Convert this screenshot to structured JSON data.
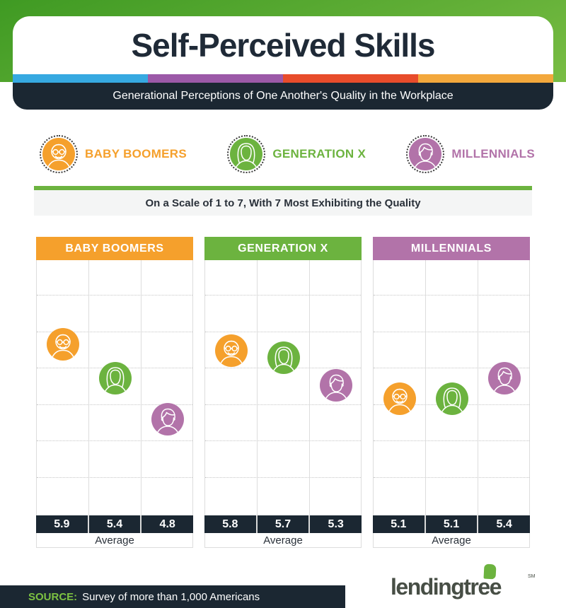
{
  "header": {
    "title": "Self-Perceived Skills",
    "subtitle": "Generational Perceptions of One Another's Quality in the Workplace",
    "band_green_top": "#3F9A23",
    "band_green_bottom": "#79BD44",
    "stripe_colors": [
      "#36A9E1",
      "#9C59A8",
      "#E84C2B",
      "#F3A83C"
    ],
    "bar_color": "#1B2732"
  },
  "legend": {
    "items": [
      {
        "label": "BABY BOOMERS",
        "color": "#F5A02C",
        "icon": "boomer-avatar-icon"
      },
      {
        "label": "GENERATION X",
        "color": "#6CB33F",
        "icon": "genx-avatar-icon"
      },
      {
        "label": "MILLENNIALS",
        "color": "#B273A9",
        "icon": "millennial-avatar-icon"
      }
    ]
  },
  "scale_note": "On a Scale of 1 to 7, With 7 Most Exhibiting the Quality",
  "chart_data": {
    "type": "scatter",
    "title": "Self-Perceived Skills",
    "scale": {
      "min": 1,
      "max": 7
    },
    "raters": [
      {
        "name": "Baby Boomers",
        "icon": "boomer-avatar-icon",
        "color": "#F5A02C"
      },
      {
        "name": "Generation X",
        "icon": "genx-avatar-icon",
        "color": "#6CB33F"
      },
      {
        "name": "Millennials",
        "icon": "millennial-avatar-icon",
        "color": "#B273A9"
      }
    ],
    "panels": [
      {
        "title": "BABY BOOMERS",
        "color": "#F5A02C",
        "values": [
          5.9,
          5.4,
          4.8
        ],
        "footer_label": "Average"
      },
      {
        "title": "GENERATION X",
        "color": "#6CB33F",
        "values": [
          5.8,
          5.7,
          5.3
        ],
        "footer_label": "Average"
      },
      {
        "title": "MILLENNIALS",
        "color": "#B273A9",
        "values": [
          5.1,
          5.1,
          5.4
        ],
        "footer_label": "Average"
      }
    ]
  },
  "footer": {
    "source_label": "SOURCE:",
    "source_text": "Survey of more than 1,000 Americans",
    "logo_text": "lendingtree",
    "logo_tm": "SM",
    "logo_leaf_color": "#6CB33F"
  }
}
